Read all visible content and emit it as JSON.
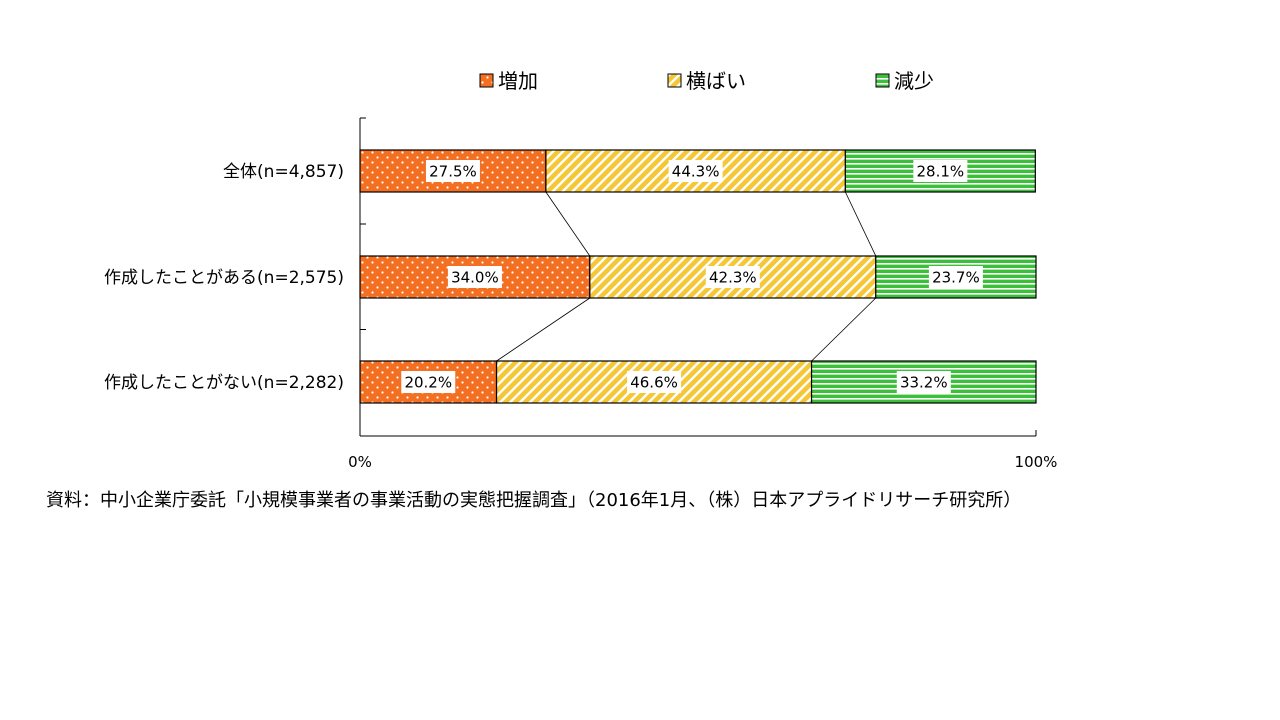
{
  "chart_data": {
    "type": "bar",
    "orientation": "horizontal",
    "stacked": true,
    "percent_stacked": true,
    "categories": [
      "全体(n=4,857)",
      "作成したことがある(n=2,575)",
      "作成したことがない(n=2,282)"
    ],
    "series": [
      {
        "name": "増加",
        "values": [
          27.5,
          34.0,
          20.2
        ],
        "labels": [
          "27.5%",
          "34.0%",
          "20.2%"
        ],
        "color": "#f36f21",
        "pattern": "dots"
      },
      {
        "name": "横ばい",
        "values": [
          44.3,
          42.3,
          46.6
        ],
        "labels": [
          "44.3%",
          "42.3%",
          "46.6%"
        ],
        "color": "#f5c737",
        "pattern": "diagonal"
      },
      {
        "name": "減少",
        "values": [
          28.1,
          23.7,
          33.2
        ],
        "labels": [
          "28.1%",
          "23.7%",
          "33.2%"
        ],
        "color": "#3cc03c",
        "pattern": "horizontal"
      }
    ],
    "xlim": [
      0,
      100
    ],
    "x_ticks": [
      "0%",
      "100%"
    ],
    "legend_position": "top",
    "series_connector_lines": true,
    "grid": false
  },
  "note": "資料：中小企業庁委託「小規模事業者の事業活動の実態把握調査」（2016年1月、（株）日本アプライドリサーチ研究所）"
}
